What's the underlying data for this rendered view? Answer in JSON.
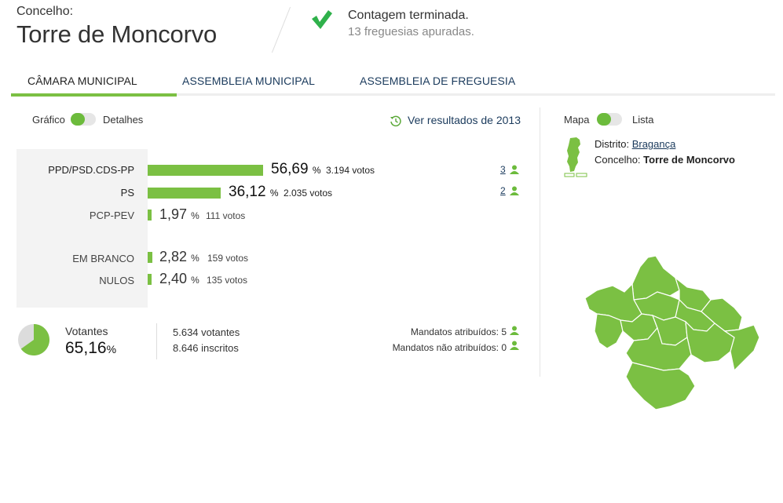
{
  "header": {
    "concelho_label": "Concelho:",
    "concelho_name": "Torre de Moncorvo",
    "status_title": "Contagem terminada.",
    "status_subtitle": "13 freguesias apuradas."
  },
  "tabs": [
    {
      "label": "CÂMARA MUNICIPAL",
      "active": true
    },
    {
      "label": "ASSEMBLEIA MUNICIPAL",
      "active": false
    },
    {
      "label": "ASSEMBLEIA DE FREGUESIA",
      "active": false
    }
  ],
  "view_toggle": {
    "left_label": "Gráfico",
    "right_label": "Detalhes"
  },
  "map_toggle": {
    "left_label": "Mapa",
    "right_label": "Lista"
  },
  "previous_results_link": "Ver resultados de 2013",
  "results": [
    {
      "party": "PPD/PSD.CDS-PP",
      "percent": "56,69",
      "percent_value": 56.69,
      "votes": "3.194 votos",
      "mandates": "3"
    },
    {
      "party": "PS",
      "percent": "36,12",
      "percent_value": 36.12,
      "votes": "2.035 votos",
      "mandates": "2"
    },
    {
      "party": "PCP-PEV",
      "percent": "1,97",
      "percent_value": 1.97,
      "votes": "111 votos",
      "mandates": ""
    }
  ],
  "other_votes": [
    {
      "label": "EM BRANCO",
      "percent": "2,82",
      "percent_value": 2.82,
      "votes": "159 votos"
    },
    {
      "label": "NULOS",
      "percent": "2,40",
      "percent_value": 2.4,
      "votes": "135 votos"
    }
  ],
  "percent_sign": "%",
  "turnout": {
    "label": "Votantes",
    "percent": "65,16",
    "percent_value": 65.16,
    "voters": "5.634 votantes",
    "registered": "8.646 inscritos"
  },
  "mandates": {
    "attributed": "Mandatos atribuídos: 5",
    "not_attributed": "Mandatos não atribuídos: 0"
  },
  "location": {
    "distrito_label": "Distrito:",
    "distrito_value": "Bragança",
    "concelho_label": "Concelho:",
    "concelho_value": "Torre de Moncorvo"
  },
  "colors": {
    "accent_green": "#7bc043",
    "link_blue": "#1a3a5c",
    "panel_gray": "#f3f3f3"
  },
  "icons": [
    "checkmark-icon",
    "history-icon",
    "person-icon",
    "portugal-map-icon",
    "pie-chart-icon"
  ]
}
